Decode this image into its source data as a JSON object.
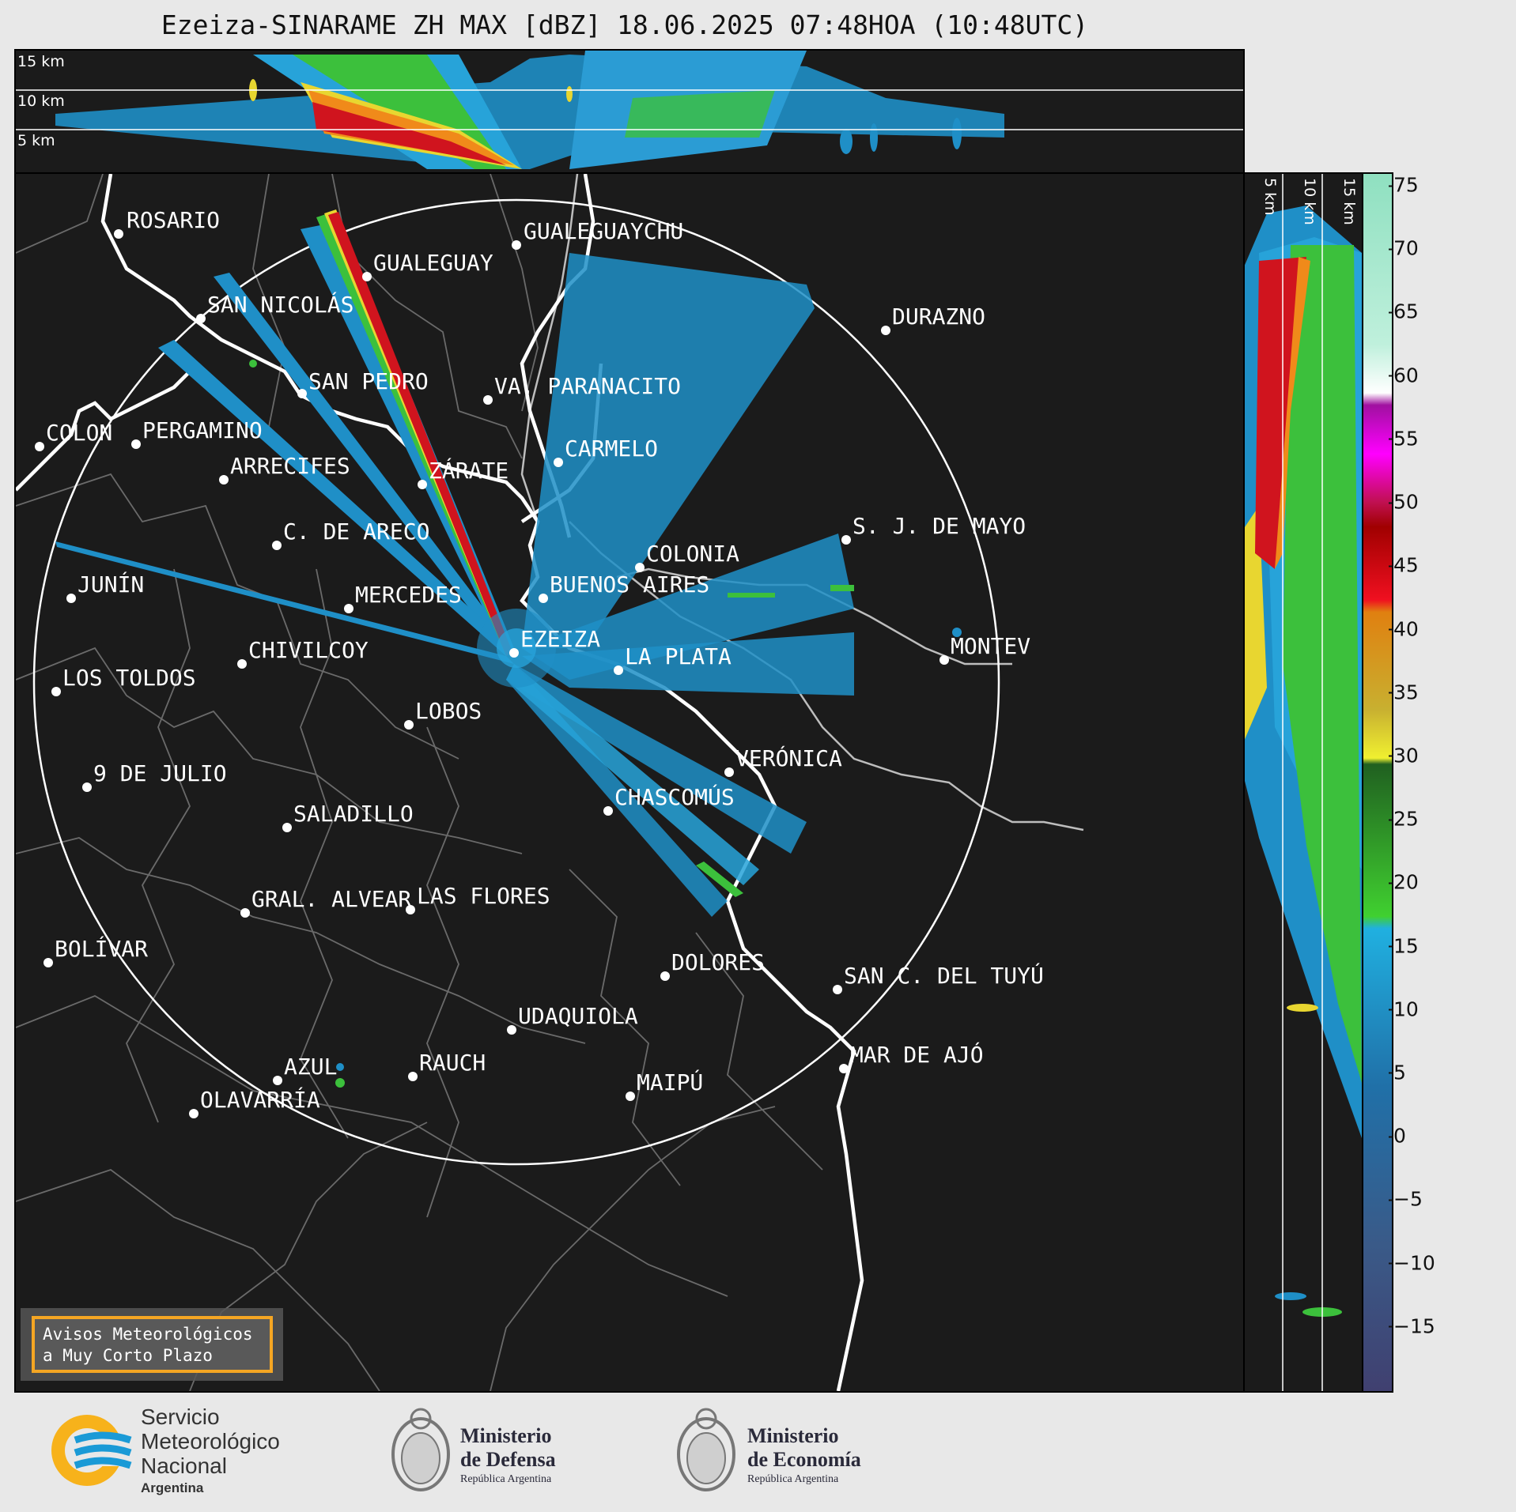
{
  "title": "Ezeiza-SINARAME ZH MAX [dBZ] 18.06.2025 07:48HOA (10:48UTC)",
  "top_panel": {
    "altitude_labels": [
      "15 km",
      "10 km",
      "5 km"
    ]
  },
  "side_panel": {
    "altitude_labels": [
      "5 km",
      "10 km",
      "15 km"
    ]
  },
  "colorbar": {
    "ticks": [
      "75",
      "70",
      "65",
      "60",
      "55",
      "50",
      "45",
      "40",
      "35",
      "30",
      "25",
      "20",
      "15",
      "10",
      "5",
      "0",
      "−5",
      "−10",
      "−15"
    ],
    "tick_values": [
      75,
      70,
      65,
      60,
      55,
      50,
      45,
      40,
      35,
      30,
      25,
      20,
      15,
      10,
      5,
      0,
      -5,
      -10,
      -15
    ],
    "range": [
      -20,
      76
    ],
    "unit": "dBZ"
  },
  "cities": [
    {
      "name": "ROSARIO"
    },
    {
      "name": "GUALEGUAYCHU"
    },
    {
      "name": "GUALEGUAY"
    },
    {
      "name": "SAN NICOLÁS"
    },
    {
      "name": "DURAZNO"
    },
    {
      "name": "SAN PEDRO"
    },
    {
      "name": "VA. PARANACITO"
    },
    {
      "name": "COLON"
    },
    {
      "name": "PERGAMINO"
    },
    {
      "name": "CARMELO"
    },
    {
      "name": "ARRECIFES"
    },
    {
      "name": "ZÁRATE"
    },
    {
      "name": "S. J. DE MAYO"
    },
    {
      "name": "C. DE ARECO"
    },
    {
      "name": "COLONIA"
    },
    {
      "name": "JUNÍN"
    },
    {
      "name": "MERCEDES"
    },
    {
      "name": "BUENOS AIRES"
    },
    {
      "name": "EZEIZA"
    },
    {
      "name": "MONTEV"
    },
    {
      "name": "CHIVILCOY"
    },
    {
      "name": "LA PLATA"
    },
    {
      "name": "LOS TOLDOS"
    },
    {
      "name": "LOBOS"
    },
    {
      "name": "VERÓNICA"
    },
    {
      "name": "9 DE JULIO"
    },
    {
      "name": "CHASCOMÚS"
    },
    {
      "name": "SALADILLO"
    },
    {
      "name": "GRAL. ALVEAR"
    },
    {
      "name": "LAS FLORES"
    },
    {
      "name": "BOLÍVAR"
    },
    {
      "name": "DOLORES"
    },
    {
      "name": "SAN C. DEL TUYÚ"
    },
    {
      "name": "UDAQUIOLA"
    },
    {
      "name": "AZUL"
    },
    {
      "name": "RAUCH"
    },
    {
      "name": "MAR DE AJÓ"
    },
    {
      "name": "OLAVARRÍA"
    },
    {
      "name": "MAIPÚ"
    }
  ],
  "warning": {
    "line1": "Avisos Meteorológicos",
    "line2": "a Muy Corto Plazo"
  },
  "logos": {
    "smn": {
      "line1": "Servicio",
      "line2": "Meteorológico",
      "line3": "Nacional",
      "line4": "Argentina"
    },
    "defensa": {
      "line1": "Ministerio",
      "line2": "de Defensa",
      "line3": "República Argentina"
    },
    "economia": {
      "line1": "Ministerio",
      "line2": "de Economía",
      "line3": "República Argentina"
    }
  },
  "colors": {
    "background": "#1b1b1b",
    "accent_warning": "#f5a623",
    "smn_blue": "#1a9ad6",
    "smn_yellow": "#f7b21b"
  }
}
